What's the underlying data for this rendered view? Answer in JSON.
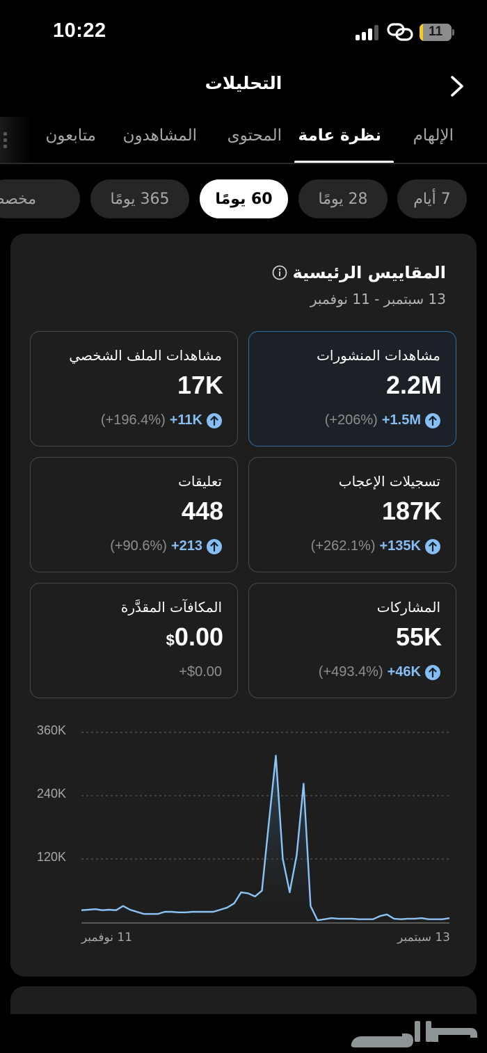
{
  "status_bar": {
    "time": "10:22",
    "battery_level": "11",
    "icons": [
      "signal-icon",
      "link-icon",
      "battery-icon"
    ]
  },
  "header": {
    "title": "التحليلات",
    "back_icon": "chevron-right-icon"
  },
  "tabs": [
    {
      "label": "الإلهام",
      "active": false
    },
    {
      "label": "نظرة عامة",
      "active": true
    },
    {
      "label": "المحتوى",
      "active": false
    },
    {
      "label": "المشاهدون",
      "active": false
    },
    {
      "label": "متابعون",
      "active": false
    }
  ],
  "date_filters": [
    {
      "label": "7 أيام",
      "active": false
    },
    {
      "label": "28 يومًا",
      "active": false
    },
    {
      "label": "60 يومًا",
      "active": true
    },
    {
      "label": "365 يومًا",
      "active": false
    },
    {
      "label": "مخصص",
      "active": false
    }
  ],
  "key_metrics": {
    "title": "المقاييس الرئيسية",
    "info_icon": "info-icon",
    "date_range": "13 سبتمبر - 11 نوفمبر",
    "cards": [
      {
        "label": "مشاهدات المنشورات",
        "value": "2.2M",
        "delta": "+1.5M",
        "delta_pct": "(+206%)",
        "selected": true
      },
      {
        "label": "مشاهدات الملف الشخصي",
        "value": "17K",
        "delta": "+11K",
        "delta_pct": "(+196.4%)",
        "selected": false
      },
      {
        "label": "تسجيلات الإعجاب",
        "value": "187K",
        "delta": "+135K",
        "delta_pct": "(+262.1%)",
        "selected": false
      },
      {
        "label": "تعليقات",
        "value": "448",
        "delta": "+213",
        "delta_pct": "(+90.6%)",
        "selected": false
      },
      {
        "label": "المشاركات",
        "value": "55K",
        "delta": "+46K",
        "delta_pct": "(+493.4%)",
        "selected": false
      },
      {
        "label": "المكافآت المقدَّرة",
        "value_currency": "$",
        "value": "0.00",
        "delta": "+$0.00",
        "delta_pct": "",
        "selected": false
      }
    ]
  },
  "colors": {
    "accent_blue": "#86bdf2",
    "selected_border": "#2f6ea7",
    "card_bg": "#1e1e1e",
    "line": "#8cc4f5",
    "battery_yellow": "#f5cc1e"
  },
  "chart_data": {
    "type": "area",
    "title": "مشاهدات المنشورات",
    "xlabel": "",
    "ylabel": "",
    "y_ticks": [
      "120K",
      "240K",
      "360K"
    ],
    "ylim": [
      0,
      360000
    ],
    "x_tick_labels": {
      "left": "11 نوفمبر",
      "right": "13 سبتمبر"
    },
    "x_direction": "right-to-left (oldest on right)",
    "grid": true,
    "series": [
      {
        "name": "مشاهدات المنشورات",
        "points_left_to_right": [
          24000,
          25000,
          26000,
          24000,
          25000,
          24000,
          32000,
          25000,
          21000,
          17000,
          17000,
          17000,
          21000,
          21000,
          20000,
          20000,
          21000,
          21000,
          21000,
          21000,
          25000,
          29000,
          37000,
          58000,
          56000,
          50000,
          61000,
          190000,
          316000,
          121000,
          58000,
          128000,
          263000,
          32000,
          5000,
          7000,
          9000,
          8000,
          8000,
          8000,
          7000,
          7000,
          7000,
          13000,
          16000,
          8000,
          7000,
          8000,
          8000,
          9000,
          7000,
          7000,
          7000,
          9000
        ]
      }
    ]
  },
  "watermark": "حراج"
}
